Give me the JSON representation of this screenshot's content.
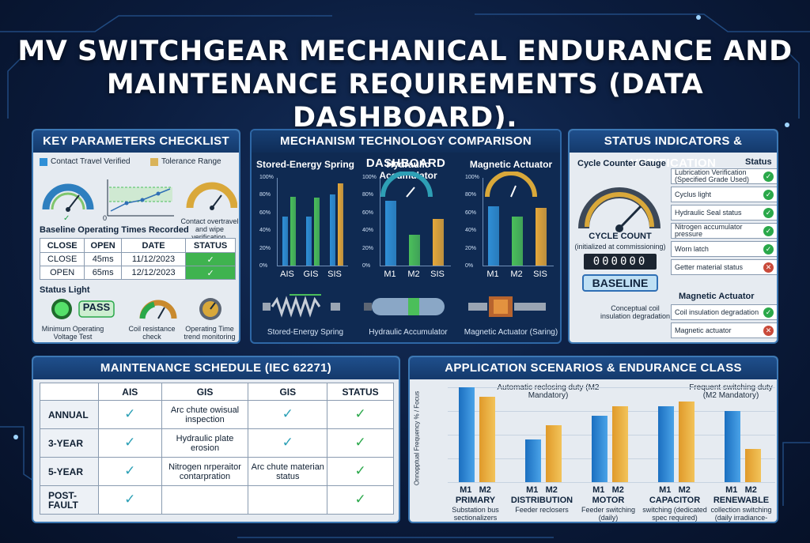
{
  "title_line1": "MV SWITCHGEAR MECHANICAL ENDURANCE AND",
  "title_line2": "MAINTENANCE REQUIREMENTS (DATA DASHBOARD).",
  "checklist": {
    "header": "KEY PARAMETERS CHECKLIST",
    "legend_travel": "Contact Travel Verified",
    "legend_tolerance": "Tolerance Range",
    "overtravel": "Contact overtravel and wipe verification.",
    "baseline_title": "Baseline Operating Times Recorded",
    "chart_zero": "0",
    "table_headers": [
      "CLOSE",
      "OPEN",
      "DATE",
      "STATUS"
    ],
    "rows": [
      {
        "c1": "CLOSE",
        "c2": "45ms",
        "c3": "11/12/2023",
        "c4": "✓"
      },
      {
        "c1": "OPEN",
        "c2": "65ms",
        "c3": "12/12/2023",
        "c4": "✓"
      }
    ],
    "status_light": "Status Light",
    "pass": "PASS",
    "min_voltage": "Minimum Operating Voltage Test",
    "coil_check": "Coil resistance check",
    "op_time": "Operating Time trend monitoring"
  },
  "mechanism": {
    "header": "MECHANISM TECHNOLOGY COMPARISON DASHBOARD",
    "yticks": [
      "100%",
      "80%",
      "60%",
      "40%",
      "20%",
      "0%"
    ],
    "charts": [
      {
        "title": "Stored-Energy Spring",
        "caption": "Stored-Energy Spring",
        "categories": [
          "AIS",
          "GIS",
          "SIS"
        ],
        "series": [
          [
            55,
            55,
            80
          ],
          [
            78,
            77,
            93
          ]
        ]
      },
      {
        "title": "Hydraulic Accumulator",
        "caption": "Hydraulic Accumulator",
        "categories": [
          "M1",
          "M2",
          "SIS"
        ],
        "series": [
          [
            73,
            35,
            53
          ]
        ]
      },
      {
        "title": "Magnetic Actuator",
        "caption": "Magnetic Actuator (Saring)",
        "categories": [
          "M1",
          "M2",
          "SIS"
        ],
        "series": [
          [
            67,
            55,
            65
          ]
        ]
      }
    ]
  },
  "status": {
    "header": "STATUS INDICATORS & VERIFICATION",
    "gauge_title": "Cycle Counter Gauge",
    "status_col": "Status",
    "cycle_count": "CYCLE COUNT",
    "cycle_sub": "(initialized at commissioning)",
    "digits": "000000",
    "baseline": "BASELINE",
    "items": [
      {
        "label": "Lubrication Verification (Specified Grade Used)",
        "ok": true
      },
      {
        "label": "Cyclus light",
        "ok": true
      },
      {
        "label": "Hydraulic Seal status",
        "ok": true
      },
      {
        "label": "Nitrogen accumulator pressure",
        "ok": true
      },
      {
        "label": "Worn latch",
        "ok": true
      },
      {
        "label": "Getter material status",
        "ok": false
      }
    ],
    "magnetic_title": "Magnetic Actuator",
    "conceptual": "Conceptual coil insulation degradation",
    "mag_items": [
      {
        "label": "Coil insulation degradation",
        "ok": true
      },
      {
        "label": "Magnetic actuator",
        "ok": false
      }
    ]
  },
  "maintenance": {
    "header": "MAINTENANCE SCHEDULE (IEC 62271)",
    "columns": [
      "",
      "AIS",
      "GIS",
      "GIS",
      "STATUS"
    ],
    "rows": [
      {
        "label": "ANNUAL",
        "ais": "✓",
        "gis": "Arc chute owisual inspection",
        "gis2": "✓",
        "status": "✓"
      },
      {
        "label": "3-YEAR",
        "ais": "✓",
        "gis": "Hydraulic plate erosion",
        "gis2": "✓",
        "status": "✓"
      },
      {
        "label": "5-YEAR",
        "ais": "✓",
        "gis": "Nitrogen nrperaitor contarpration",
        "gis2": "Arc chute materian status",
        "status": "✓"
      },
      {
        "label": "POST-FAULT",
        "ais": "✓",
        "gis": "",
        "gis2": "",
        "status": "✓"
      }
    ]
  },
  "application": {
    "header": "APPLICATION SCENARIOS & ENDURANCE CLASS",
    "ylabel": "Onnopptual Frequency % / Focus",
    "note1": "Automatic reclosing duty (M2 Mandatory)",
    "note2": "Frequent switching duty (M2 Mandatory)",
    "chart_data": {
      "type": "bar",
      "ylabel": "Onnopptual Frequency % / Focus",
      "ylim": [
        0,
        100
      ],
      "series": [
        {
          "name": "M1"
        },
        {
          "name": "M2"
        }
      ],
      "categories": [
        {
          "bar_labels": [
            "M1",
            "M2"
          ],
          "name": "PRIMARY",
          "sub": "Substation bus sectionalizers",
          "m1": 100,
          "m2": 90
        },
        {
          "bar_labels": [
            "M1",
            "M2"
          ],
          "name": "DISTRIBUTION",
          "sub": "Feeder reclosers",
          "m1": 45,
          "m2": 60
        },
        {
          "bar_labels": [
            "M1",
            "M2"
          ],
          "name": "MOTOR",
          "sub": "Feeder switching (daily)",
          "m1": 70,
          "m2": 80
        },
        {
          "bar_labels": [
            "M1",
            "M2"
          ],
          "name": "CAPACITOR",
          "sub": "switching (dedicated spec required)",
          "m1": 80,
          "m2": 85
        },
        {
          "bar_labels": [
            "M1",
            "M2"
          ],
          "name": "RENEWABLE",
          "sub": "collection switching (daily irradiance-driven)",
          "m1": 75,
          "m2": 35
        }
      ]
    }
  },
  "colors": {
    "bar_blue": "#2f8fd6",
    "bar_green": "#4bbf5a",
    "bar_gold": "#e6a83a",
    "bar_gray": "#b7b9bf"
  }
}
